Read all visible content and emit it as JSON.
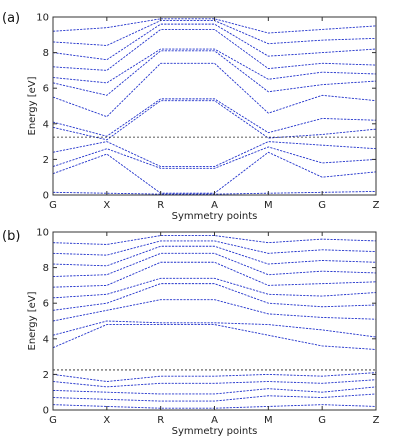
{
  "chart_data": [
    {
      "type": "line",
      "panel_label": "(a)",
      "xlabel": "Symmetry points",
      "ylabel": "Energy [eV]",
      "ylim": [
        0,
        10
      ],
      "yticks": [
        0,
        2,
        4,
        6,
        8,
        10
      ],
      "kpoints": [
        "G",
        "X",
        "R",
        "A",
        "M",
        "G",
        "Z"
      ],
      "kpoint_positions": [
        0,
        1,
        2,
        3,
        4,
        5,
        6
      ],
      "fermi_level": 3.25,
      "grid": false,
      "series_color": "#2233cc",
      "series": [
        {
          "x": [
            0,
            1,
            2,
            3,
            4,
            5,
            6
          ],
          "values": [
            0.15,
            0.1,
            0.05,
            0.05,
            0.1,
            0.15,
            0.2
          ]
        },
        {
          "x": [
            0,
            1,
            2,
            3,
            4,
            5,
            6
          ],
          "values": [
            1.2,
            2.3,
            0.1,
            0.1,
            2.4,
            1.0,
            1.3
          ]
        },
        {
          "x": [
            0,
            1,
            2,
            3,
            4,
            5,
            6
          ],
          "values": [
            1.6,
            2.6,
            1.5,
            1.5,
            2.7,
            1.8,
            2.0
          ]
        },
        {
          "x": [
            0,
            1,
            2,
            3,
            4,
            5,
            6
          ],
          "values": [
            2.4,
            3.0,
            1.6,
            1.6,
            3.0,
            2.8,
            2.6
          ]
        },
        {
          "x": [
            0,
            1,
            2,
            3,
            4,
            5,
            6
          ],
          "values": [
            3.8,
            3.1,
            5.3,
            5.3,
            3.2,
            3.4,
            3.7
          ]
        },
        {
          "x": [
            0,
            1,
            2,
            3,
            4,
            5,
            6
          ],
          "values": [
            4.1,
            3.3,
            5.4,
            5.4,
            3.5,
            4.3,
            4.2
          ]
        },
        {
          "x": [
            0,
            1,
            2,
            3,
            4,
            5,
            6
          ],
          "values": [
            5.5,
            4.4,
            7.4,
            7.4,
            4.6,
            5.6,
            5.3
          ]
        },
        {
          "x": [
            0,
            1,
            2,
            3,
            4,
            5,
            6
          ],
          "values": [
            6.3,
            5.6,
            8.1,
            8.1,
            5.8,
            6.2,
            6.4
          ]
        },
        {
          "x": [
            0,
            1,
            2,
            3,
            4,
            5,
            6
          ],
          "values": [
            6.6,
            6.3,
            8.2,
            8.2,
            6.5,
            6.9,
            6.8
          ]
        },
        {
          "x": [
            0,
            1,
            2,
            3,
            4,
            5,
            6
          ],
          "values": [
            7.2,
            7.0,
            9.3,
            9.3,
            7.1,
            7.4,
            7.3
          ]
        },
        {
          "x": [
            0,
            1,
            2,
            3,
            4,
            5,
            6
          ],
          "values": [
            8.0,
            7.6,
            9.6,
            9.6,
            7.8,
            8.0,
            8.2
          ]
        },
        {
          "x": [
            0,
            1,
            2,
            3,
            4,
            5,
            6
          ],
          "values": [
            8.6,
            8.4,
            9.8,
            9.8,
            8.5,
            8.7,
            8.8
          ]
        },
        {
          "x": [
            0,
            1,
            2,
            3,
            4,
            5,
            6
          ],
          "values": [
            9.2,
            9.4,
            9.9,
            9.9,
            9.1,
            9.3,
            9.5
          ]
        }
      ]
    },
    {
      "type": "line",
      "panel_label": "(b)",
      "xlabel": "Symmetry points",
      "ylabel": "Energy [eV]",
      "ylim": [
        0,
        10
      ],
      "yticks": [
        0,
        2,
        4,
        6,
        8,
        10
      ],
      "kpoints": [
        "G",
        "X",
        "R",
        "A",
        "M",
        "G",
        "Z"
      ],
      "kpoint_positions": [
        0,
        1,
        2,
        3,
        4,
        5,
        6
      ],
      "fermi_level": 2.25,
      "grid": false,
      "series_color": "#2233cc",
      "series": [
        {
          "x": [
            0,
            1,
            2,
            3,
            4,
            5,
            6
          ],
          "values": [
            0.3,
            0.2,
            0.1,
            0.1,
            0.2,
            0.3,
            0.2
          ]
        },
        {
          "x": [
            0,
            1,
            2,
            3,
            4,
            5,
            6
          ],
          "values": [
            0.7,
            0.6,
            0.5,
            0.5,
            0.8,
            0.7,
            0.9
          ]
        },
        {
          "x": [
            0,
            1,
            2,
            3,
            4,
            5,
            6
          ],
          "values": [
            1.1,
            1.0,
            0.9,
            0.9,
            1.2,
            1.0,
            1.3
          ]
        },
        {
          "x": [
            0,
            1,
            2,
            3,
            4,
            5,
            6
          ],
          "values": [
            1.6,
            1.3,
            1.5,
            1.5,
            1.6,
            1.5,
            1.7
          ]
        },
        {
          "x": [
            0,
            1,
            2,
            3,
            4,
            5,
            6
          ],
          "values": [
            2.0,
            1.6,
            1.9,
            1.9,
            2.0,
            1.9,
            2.1
          ]
        },
        {
          "x": [
            0,
            1,
            2,
            3,
            4,
            5,
            6
          ],
          "values": [
            3.5,
            4.8,
            4.8,
            4.8,
            4.2,
            3.6,
            3.4
          ]
        },
        {
          "x": [
            0,
            1,
            2,
            3,
            4,
            5,
            6
          ],
          "values": [
            4.2,
            5.0,
            4.9,
            4.9,
            4.8,
            4.5,
            4.1
          ]
        },
        {
          "x": [
            0,
            1,
            2,
            3,
            4,
            5,
            6
          ],
          "values": [
            5.0,
            5.6,
            6.2,
            6.2,
            5.4,
            5.2,
            5.1
          ]
        },
        {
          "x": [
            0,
            1,
            2,
            3,
            4,
            5,
            6
          ],
          "values": [
            5.6,
            6.0,
            7.1,
            7.1,
            6.0,
            5.8,
            5.9
          ]
        },
        {
          "x": [
            0,
            1,
            2,
            3,
            4,
            5,
            6
          ],
          "values": [
            6.3,
            6.5,
            7.4,
            7.4,
            6.5,
            6.4,
            6.6
          ]
        },
        {
          "x": [
            0,
            1,
            2,
            3,
            4,
            5,
            6
          ],
          "values": [
            6.9,
            7.0,
            8.3,
            8.3,
            7.0,
            7.1,
            7.2
          ]
        },
        {
          "x": [
            0,
            1,
            2,
            3,
            4,
            5,
            6
          ],
          "values": [
            7.5,
            7.6,
            8.8,
            8.8,
            7.6,
            7.8,
            7.7
          ]
        },
        {
          "x": [
            0,
            1,
            2,
            3,
            4,
            5,
            6
          ],
          "values": [
            8.2,
            8.1,
            9.2,
            9.2,
            8.2,
            8.4,
            8.3
          ]
        },
        {
          "x": [
            0,
            1,
            2,
            3,
            4,
            5,
            6
          ],
          "values": [
            8.8,
            8.7,
            9.5,
            9.5,
            8.8,
            9.0,
            8.9
          ]
        },
        {
          "x": [
            0,
            1,
            2,
            3,
            4,
            5,
            6
          ],
          "values": [
            9.4,
            9.3,
            9.8,
            9.8,
            9.4,
            9.6,
            9.5
          ]
        }
      ]
    }
  ]
}
